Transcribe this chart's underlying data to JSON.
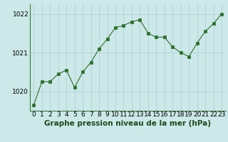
{
  "x": [
    0,
    1,
    2,
    3,
    4,
    5,
    6,
    7,
    8,
    9,
    10,
    11,
    12,
    13,
    14,
    15,
    16,
    17,
    18,
    19,
    20,
    21,
    22,
    23
  ],
  "y": [
    1019.65,
    1020.25,
    1020.25,
    1020.45,
    1020.55,
    1020.1,
    1020.5,
    1020.75,
    1021.1,
    1021.35,
    1021.65,
    1021.7,
    1021.8,
    1021.85,
    1021.5,
    1021.4,
    1021.4,
    1021.15,
    1021.0,
    1020.9,
    1021.25,
    1021.55,
    1021.75,
    1022.0
  ],
  "line_color": "#2d6e2d",
  "marker_color": "#2d6e2d",
  "bg_color": "#cce8e8",
  "grid_color": "#aacece",
  "title": "Graphe pression niveau de la mer (hPa)",
  "ylim_min": 1019.5,
  "ylim_max": 1022.25,
  "yticks": [
    1020,
    1021,
    1022
  ],
  "xticks": [
    0,
    1,
    2,
    3,
    4,
    5,
    6,
    7,
    8,
    9,
    10,
    11,
    12,
    13,
    14,
    15,
    16,
    17,
    18,
    19,
    20,
    21,
    22,
    23
  ],
  "tick_fontsize": 6.5,
  "title_fontsize": 7.5,
  "title_fontweight": "bold"
}
